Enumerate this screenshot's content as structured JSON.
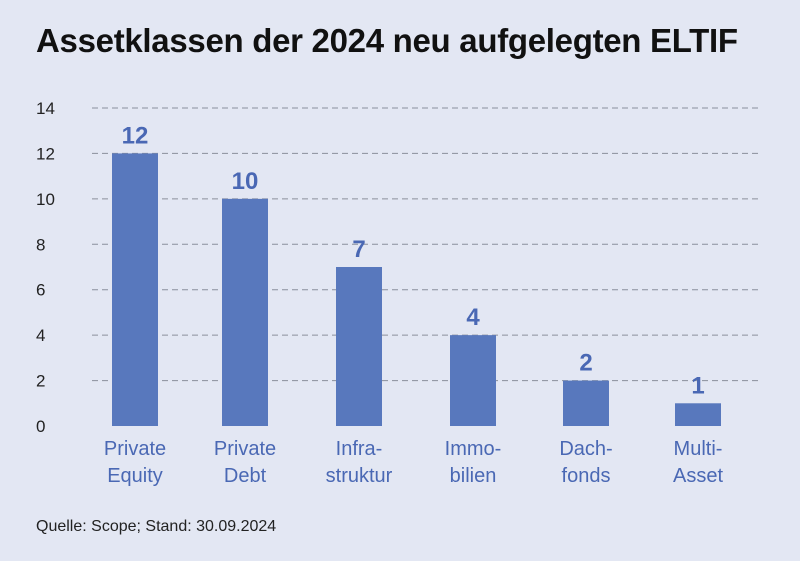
{
  "title": "Assetklassen der 2024 neu aufgelegten ELTIF",
  "source": "Quelle: Scope; Stand: 30.09.2024",
  "colors": {
    "bar": "#5878bd",
    "label": "#4a68b4",
    "background": "#e3e7f3",
    "grid": "#8a8f9c"
  },
  "chart_data": {
    "type": "bar",
    "title": "Assetklassen der 2024 neu aufgelegten ELTIF",
    "categories": [
      [
        "Private",
        "Equity"
      ],
      [
        "Private",
        "Debt"
      ],
      [
        "Infra-",
        "struktur"
      ],
      [
        "Immo-",
        "bilien"
      ],
      [
        "Dach-",
        "fonds"
      ],
      [
        "Multi-",
        "Asset"
      ]
    ],
    "values": [
      12,
      10,
      7,
      4,
      2,
      1
    ],
    "ylim": [
      0,
      14
    ],
    "yticks": [
      0,
      2,
      4,
      6,
      8,
      10,
      12,
      14
    ],
    "grid": "dashed horizontal",
    "xlabel": "",
    "ylabel": ""
  }
}
